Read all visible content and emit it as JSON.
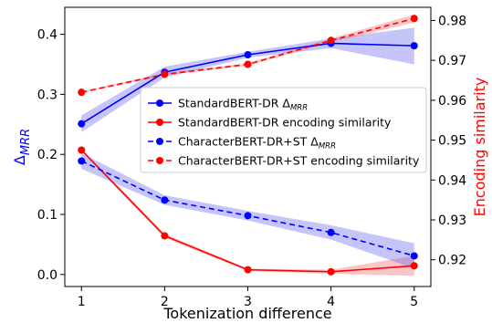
{
  "chart_data": {
    "type": "line",
    "xlabel": "Tokenization difference",
    "ylabel_left": "Δ",
    "ylabel_left_sub": "MRR",
    "ylabel_right": "Encoding similarity",
    "x": [
      1,
      2,
      3,
      4,
      5
    ],
    "x_ticks": [
      "1",
      "2",
      "3",
      "4",
      "5"
    ],
    "left_axis": {
      "range": [
        -0.02,
        0.445
      ],
      "ticks": [
        "0.0",
        "0.1",
        "0.2",
        "0.3",
        "0.4"
      ],
      "tick_values": [
        0,
        0.1,
        0.2,
        0.3,
        0.4
      ],
      "color": "#0000ff"
    },
    "right_axis": {
      "range": [
        0.9133,
        0.9833
      ],
      "ticks": [
        "0.92",
        "0.93",
        "0.94",
        "0.95",
        "0.96",
        "0.97",
        "0.98"
      ],
      "tick_values": [
        0.92,
        0.93,
        0.94,
        0.95,
        0.96,
        0.97,
        0.98
      ],
      "color": "#ff0000"
    },
    "grid": false,
    "legend_position": "center-right",
    "series": [
      {
        "label": "StandardBERT-DR Δ",
        "label_sub": "MRR",
        "axis": "left",
        "color": "#0000ff",
        "dash": false,
        "values": [
          0.251,
          0.337,
          0.366,
          0.385,
          0.381
        ],
        "band_low": [
          0.237,
          0.328,
          0.361,
          0.377,
          0.35
        ],
        "band_high": [
          0.265,
          0.346,
          0.371,
          0.393,
          0.411
        ]
      },
      {
        "label": "StandardBERT-DR encoding similarity",
        "axis": "right",
        "color": "#ff0000",
        "dash": false,
        "values": [
          0.9475,
          0.926,
          0.9175,
          0.917,
          0.9185
        ],
        "band_low": [
          0.9472,
          0.9255,
          0.9172,
          0.9165,
          0.916
        ],
        "band_high": [
          0.9478,
          0.9265,
          0.9178,
          0.9175,
          0.921
        ]
      },
      {
        "label": "CharacterBERT-DR+ST Δ",
        "label_sub": "MRR",
        "axis": "left",
        "color": "#0000ff",
        "dash": true,
        "values": [
          0.189,
          0.124,
          0.098,
          0.07,
          0.031
        ],
        "band_low": [
          0.176,
          0.116,
          0.09,
          0.058,
          0.01
        ],
        "band_high": [
          0.202,
          0.132,
          0.106,
          0.082,
          0.052
        ]
      },
      {
        "label": "CharacterBERT-DR+ST encoding similarity",
        "axis": "right",
        "color": "#ff0000",
        "dash": true,
        "values": [
          0.962,
          0.9665,
          0.969,
          0.975,
          0.9805
        ],
        "band_low": [
          0.9618,
          0.9662,
          0.9687,
          0.9745,
          0.9795
        ],
        "band_high": [
          0.9622,
          0.9668,
          0.9693,
          0.9755,
          0.9815
        ]
      }
    ]
  }
}
